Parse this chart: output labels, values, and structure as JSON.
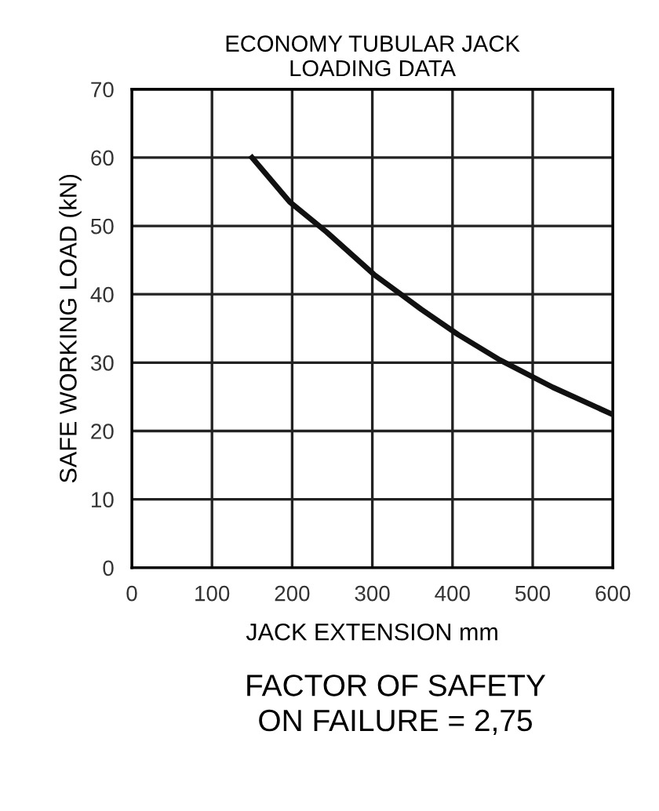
{
  "chart_data": {
    "type": "line",
    "title": "ECONOMY TUBULAR JACK\nLOADING DATA",
    "xlabel": "JACK EXTENSION mm",
    "ylabel": "SAFE WORKING LOAD (kN)",
    "x": [
      150,
      197,
      243,
      302,
      361,
      407,
      459,
      525,
      600
    ],
    "series": [
      {
        "color": "#111111",
        "values": [
          60,
          53.5,
          49.1,
          42.9,
          37.8,
          34.1,
          30.4,
          26.4,
          22.4
        ]
      }
    ],
    "xlim": [
      0,
      600
    ],
    "xticks": [
      0,
      100,
      200,
      300,
      400,
      500,
      600
    ],
    "ylim": [
      0,
      70
    ],
    "yticks": [
      0,
      10,
      20,
      30,
      40,
      50,
      60,
      70
    ],
    "grid": true,
    "marker": "none",
    "line_style": "solid",
    "annotations": [
      "FACTOR OF SAFETY\nON FAILURE = 2,75"
    ]
  }
}
